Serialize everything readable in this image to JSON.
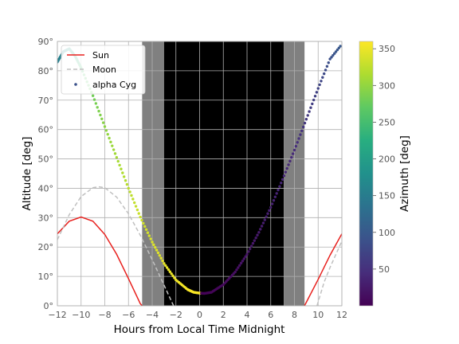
{
  "chart_data": {
    "type": "line",
    "title": "",
    "xlabel": "Hours from Local Time Midnight",
    "ylabel": "Altitude [deg]",
    "xlim": [
      -12,
      12
    ],
    "ylim": [
      0,
      90
    ],
    "x_ticks": [
      -12,
      -10,
      -8,
      -6,
      -4,
      -2,
      0,
      2,
      4,
      6,
      8,
      10,
      12
    ],
    "y_ticks": [
      0,
      10,
      20,
      30,
      40,
      50,
      60,
      70,
      80,
      90
    ],
    "y_tick_suffix": "°",
    "grid": true,
    "legend_position": "top-left",
    "series": [
      {
        "name": "Sun",
        "style": "solid",
        "color": "#e8211e",
        "x": [
          -12,
          -11,
          -10,
          -9,
          -8,
          -7,
          -6,
          -5,
          -4.85,
          8.85,
          9,
          10,
          11,
          12
        ],
        "y": [
          24.5,
          28.8,
          30.2,
          28.8,
          24.3,
          17.5,
          9.2,
          0.7,
          0,
          0,
          1.2,
          9.0,
          17.2,
          24.5
        ]
      },
      {
        "name": "Moon",
        "style": "dashed",
        "color": "#c0c0c0",
        "x": [
          -12,
          -11,
          -10,
          -9,
          -8.5,
          -8,
          -7,
          -6,
          -5,
          -4,
          -3,
          -2.2,
          9.9,
          10.5,
          11,
          12
        ],
        "y": [
          22.5,
          31,
          37.2,
          40.2,
          40.5,
          40.2,
          37,
          31.3,
          24,
          15.7,
          7,
          0,
          0,
          8,
          13,
          22
        ]
      },
      {
        "name": "alpha Cyg",
        "style": "points",
        "x": [
          -12,
          -11.5,
          -11,
          -10.5,
          -10,
          -9,
          -8,
          -7,
          -6,
          -5,
          -4,
          -3,
          -2,
          -1,
          -0.5,
          0,
          0.4,
          1,
          2,
          3,
          4,
          5,
          6,
          7,
          8,
          9,
          10,
          11,
          12
        ],
        "y": [
          83,
          86.5,
          87.5,
          85,
          81,
          71.5,
          61,
          50.5,
          40,
          30.2,
          21.7,
          14.4,
          8.8,
          5.5,
          4.6,
          4.3,
          4.2,
          4.6,
          7.2,
          11.5,
          17.5,
          25,
          33.5,
          43,
          53,
          63.5,
          74,
          84,
          89
        ],
        "azimuth": [
          150,
          165,
          195,
          225,
          250,
          280,
          296,
          310,
          322,
          332,
          340,
          346,
          352,
          356,
          358,
          359,
          2,
          4,
          8,
          14,
          20,
          26,
          32,
          38,
          44,
          58,
          72,
          88,
          100
        ]
      }
    ],
    "shaded_regions": [
      {
        "x": [
          -4.85,
          -3.0
        ],
        "shade": "#808080"
      },
      {
        "x": [
          -3.0,
          7.1
        ],
        "shade": "#000000"
      },
      {
        "x": [
          7.1,
          8.85
        ],
        "shade": "#808080"
      }
    ],
    "colorbar": {
      "label": "Azimuth [deg]",
      "colormap": "viridis",
      "range": [
        0,
        360
      ],
      "ticks": [
        50,
        100,
        150,
        200,
        250,
        300,
        350
      ]
    }
  }
}
